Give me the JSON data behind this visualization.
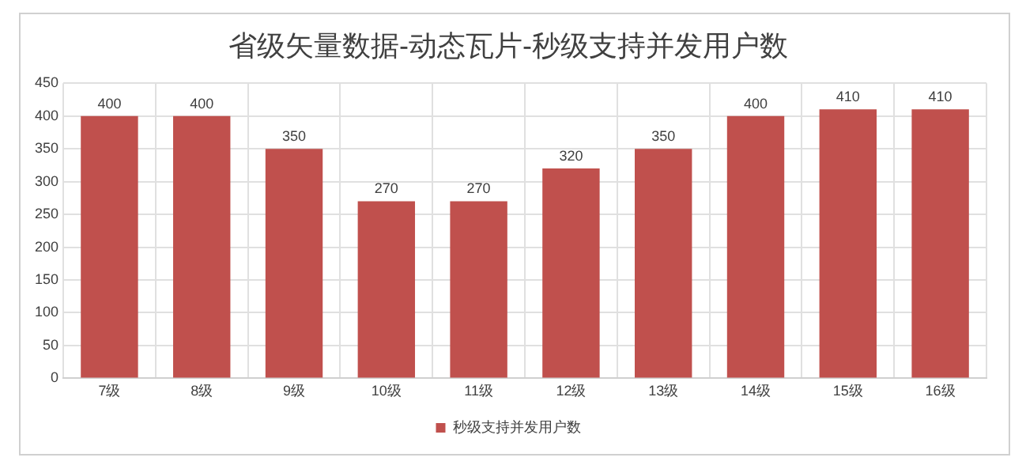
{
  "chart_data": {
    "type": "bar",
    "title": "省级矢量数据-动态瓦片-秒级支持并发用户数",
    "categories": [
      "7级",
      "8级",
      "9级",
      "10级",
      "11级",
      "12级",
      "13级",
      "14级",
      "15级",
      "16级"
    ],
    "series": [
      {
        "name": "秒级支持并发用户数",
        "color": "#c0504d",
        "values": [
          400,
          400,
          350,
          270,
          270,
          320,
          350,
          400,
          410,
          410
        ]
      }
    ],
    "ylim": [
      0,
      450
    ],
    "yticks": [
      0,
      50,
      100,
      150,
      200,
      250,
      300,
      350,
      400,
      450
    ],
    "grid": true,
    "legend": "bottom",
    "data_labels": true
  }
}
